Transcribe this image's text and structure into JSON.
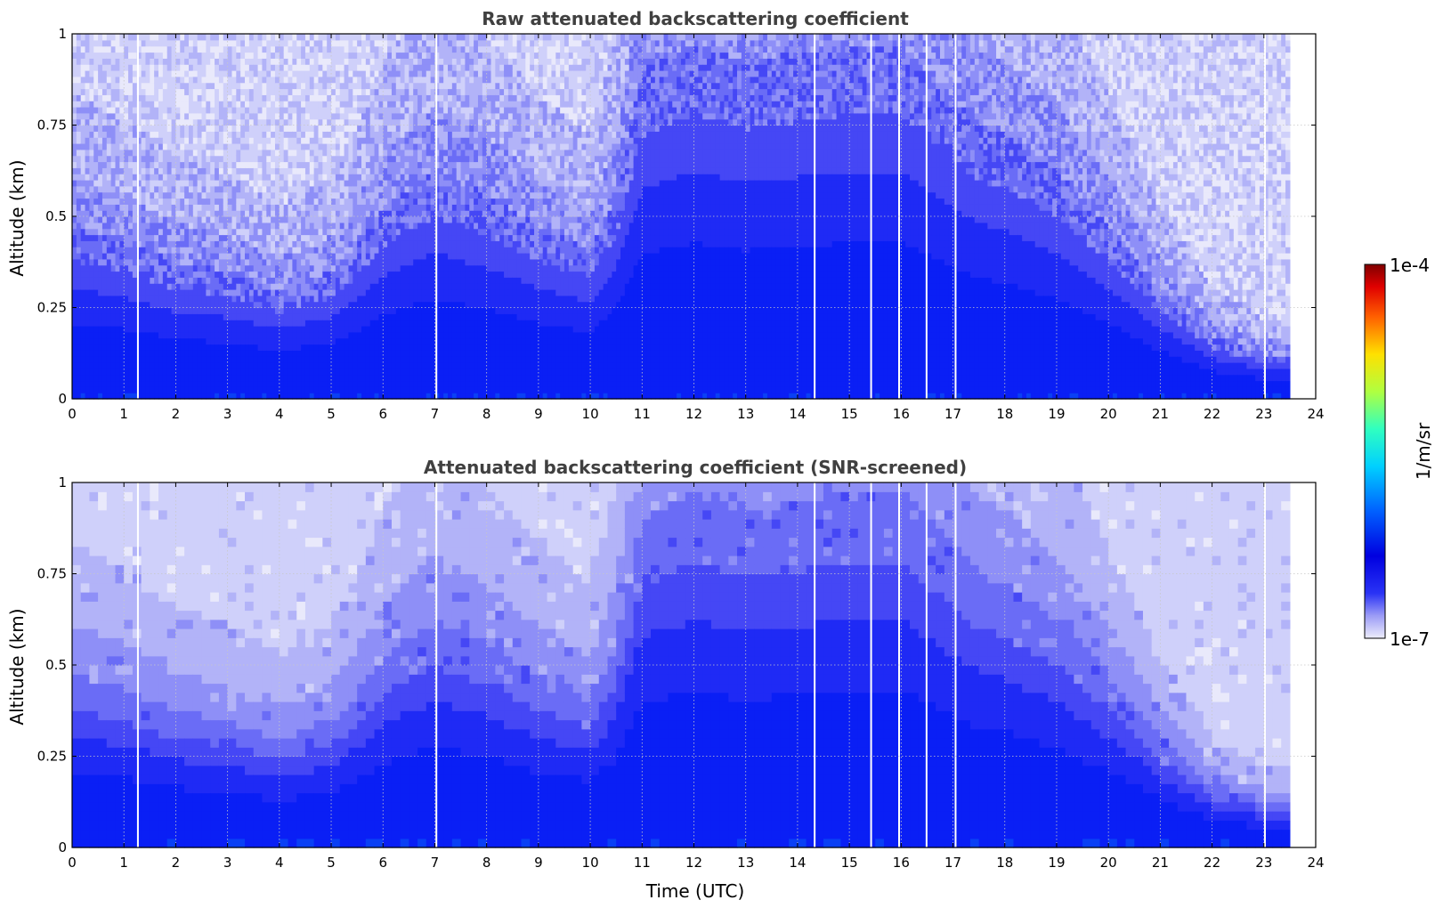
{
  "chart_data": [
    {
      "type": "heatmap",
      "title": "Raw attenuated backscattering coefficient",
      "xlabel": "",
      "ylabel": "Altitude (km)",
      "xlim": [
        0,
        24
      ],
      "ylim": [
        0,
        1
      ],
      "x_ticks": [
        "0",
        "1",
        "2",
        "3",
        "4",
        "5",
        "6",
        "7",
        "8",
        "9",
        "10",
        "11",
        "12",
        "13",
        "14",
        "15",
        "16",
        "17",
        "18",
        "19",
        "20",
        "21",
        "22",
        "23",
        "24"
      ],
      "y_ticks": [
        "0",
        "0.25",
        "0.5",
        "0.75",
        "1"
      ],
      "grid": true,
      "data_end_time": 23.5,
      "gap_times": [
        1.27,
        7.03,
        14.33,
        15.42,
        15.96,
        16.49,
        17.05,
        23.02
      ],
      "boundary_layer_top_km": {
        "times": [
          0,
          1,
          2,
          3,
          4,
          5,
          5.5,
          6,
          7,
          8,
          9,
          10,
          10.5,
          11,
          12,
          13,
          14,
          15,
          16,
          17,
          17.5,
          18,
          19,
          20,
          21,
          22,
          23,
          23.5
        ],
        "values": [
          0.38,
          0.35,
          0.3,
          0.28,
          0.24,
          0.28,
          0.34,
          0.42,
          0.5,
          0.45,
          0.38,
          0.33,
          0.45,
          0.72,
          0.78,
          0.74,
          0.76,
          0.78,
          0.78,
          0.66,
          0.6,
          0.58,
          0.5,
          0.38,
          0.24,
          0.14,
          0.1,
          0.1
        ]
      },
      "noise_level": "high"
    },
    {
      "type": "heatmap",
      "title": "Attenuated backscattering coefficient (SNR-screened)",
      "xlabel": "Time (UTC)",
      "ylabel": "Altitude (km)",
      "xlim": [
        0,
        24
      ],
      "ylim": [
        0,
        1
      ],
      "x_ticks": [
        "0",
        "1",
        "2",
        "3",
        "4",
        "5",
        "6",
        "7",
        "8",
        "9",
        "10",
        "11",
        "12",
        "13",
        "14",
        "15",
        "16",
        "17",
        "18",
        "19",
        "20",
        "21",
        "22",
        "23",
        "24"
      ],
      "y_ticks": [
        "0",
        "0.25",
        "0.5",
        "0.75",
        "1"
      ],
      "grid": true,
      "data_end_time": 23.5,
      "gap_times": [
        1.27,
        7.03,
        14.33,
        15.42,
        15.96,
        16.49,
        17.05,
        23.02
      ],
      "boundary_layer_top_km": {
        "times": [
          0,
          1,
          2,
          3,
          4,
          5,
          5.5,
          6,
          7,
          8,
          9,
          10,
          10.5,
          11,
          12,
          13,
          14,
          15,
          16,
          17,
          17.5,
          18,
          19,
          20,
          21,
          22,
          23,
          23.5
        ],
        "values": [
          0.38,
          0.35,
          0.3,
          0.28,
          0.24,
          0.28,
          0.34,
          0.42,
          0.5,
          0.45,
          0.38,
          0.33,
          0.45,
          0.72,
          0.78,
          0.74,
          0.76,
          0.78,
          0.78,
          0.66,
          0.6,
          0.58,
          0.5,
          0.38,
          0.24,
          0.14,
          0.1,
          0.1
        ]
      },
      "noise_level": "low"
    }
  ],
  "colorbar": {
    "label": "1/m/sr",
    "max_label": "1e-4",
    "min_label": "1e-7",
    "scale": "log",
    "colormap": "jet"
  },
  "colors": {
    "background_near": "#0a1ff5",
    "levels": [
      "#e9e9fb",
      "#cfd0fa",
      "#b2b3f8",
      "#8e8ff7",
      "#6a6cf6",
      "#4547f5",
      "#1f2af5",
      "#0a1ff5",
      "#0a40f5"
    ],
    "grid": "#c8c8c8"
  }
}
